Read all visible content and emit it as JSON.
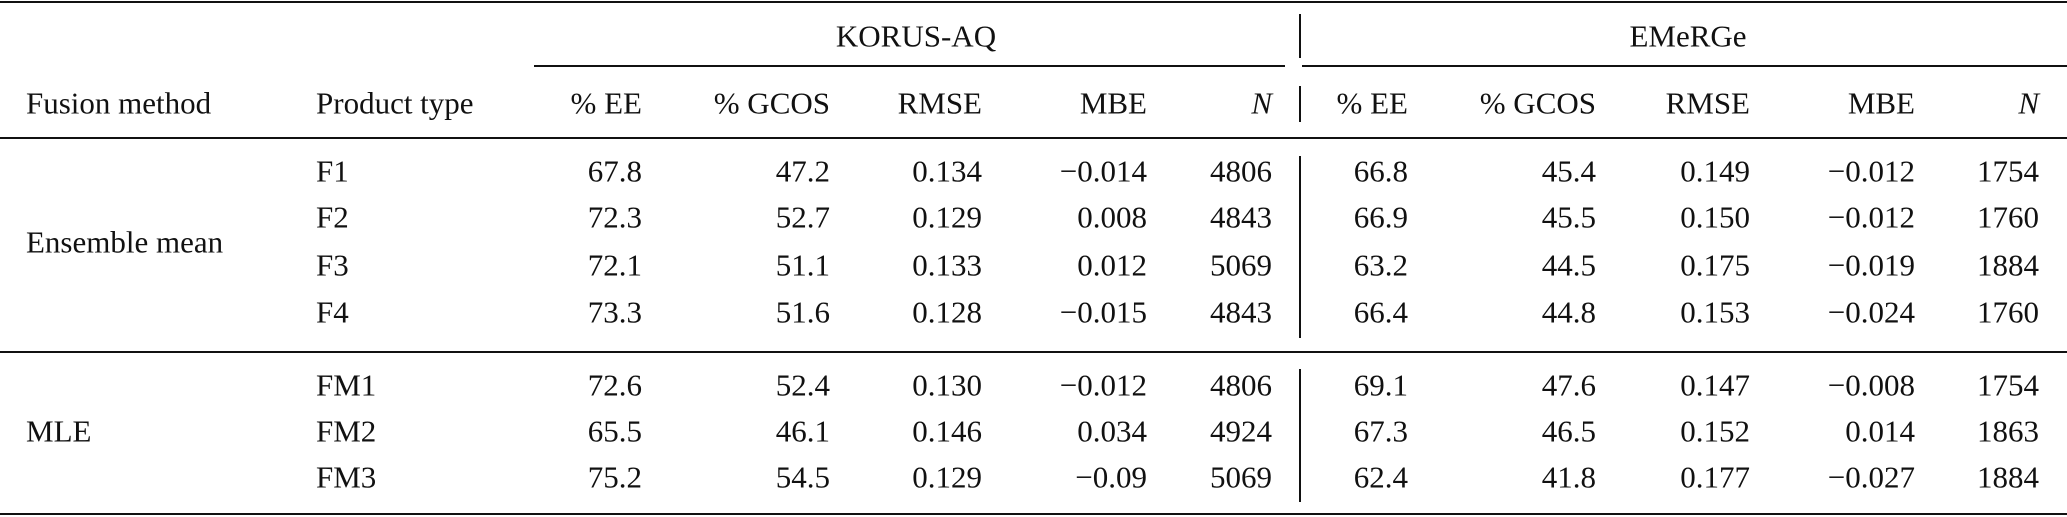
{
  "table": {
    "groups": [
      "KORUS-AQ",
      "EMeRGe"
    ],
    "columns": [
      "Fusion method",
      "Product type",
      "% EE",
      "% GCOS",
      "RMSE",
      "MBE",
      "N",
      "% EE",
      "% GCOS",
      "RMSE",
      "MBE",
      "N"
    ],
    "sections": [
      {
        "method": "Ensemble mean",
        "rows": [
          [
            "F1",
            "67.8",
            "47.2",
            "0.134",
            "−0.014",
            "4806",
            "66.8",
            "45.4",
            "0.149",
            "−0.012",
            "1754"
          ],
          [
            "F2",
            "72.3",
            "52.7",
            "0.129",
            "0.008",
            "4843",
            "66.9",
            "45.5",
            "0.150",
            "−0.012",
            "1760"
          ],
          [
            "F3",
            "72.1",
            "51.1",
            "0.133",
            "0.012",
            "5069",
            "63.2",
            "44.5",
            "0.175",
            "−0.019",
            "1884"
          ],
          [
            "F4",
            "73.3",
            "51.6",
            "0.128",
            "−0.015",
            "4843",
            "66.4",
            "44.8",
            "0.153",
            "−0.024",
            "1760"
          ]
        ]
      },
      {
        "method": "MLE",
        "rows": [
          [
            "FM1",
            "72.6",
            "52.4",
            "0.130",
            "−0.012",
            "4806",
            "69.1",
            "47.6",
            "0.147",
            "−0.008",
            "1754"
          ],
          [
            "FM2",
            "65.5",
            "46.1",
            "0.146",
            "0.034",
            "4924",
            "67.3",
            "46.5",
            "0.152",
            "0.014",
            "1863"
          ],
          [
            "FM3",
            "75.2",
            "54.5",
            "0.129",
            "−0.09",
            "5069",
            "62.4",
            "41.8",
            "0.177",
            "−0.027",
            "1884"
          ]
        ]
      }
    ]
  }
}
